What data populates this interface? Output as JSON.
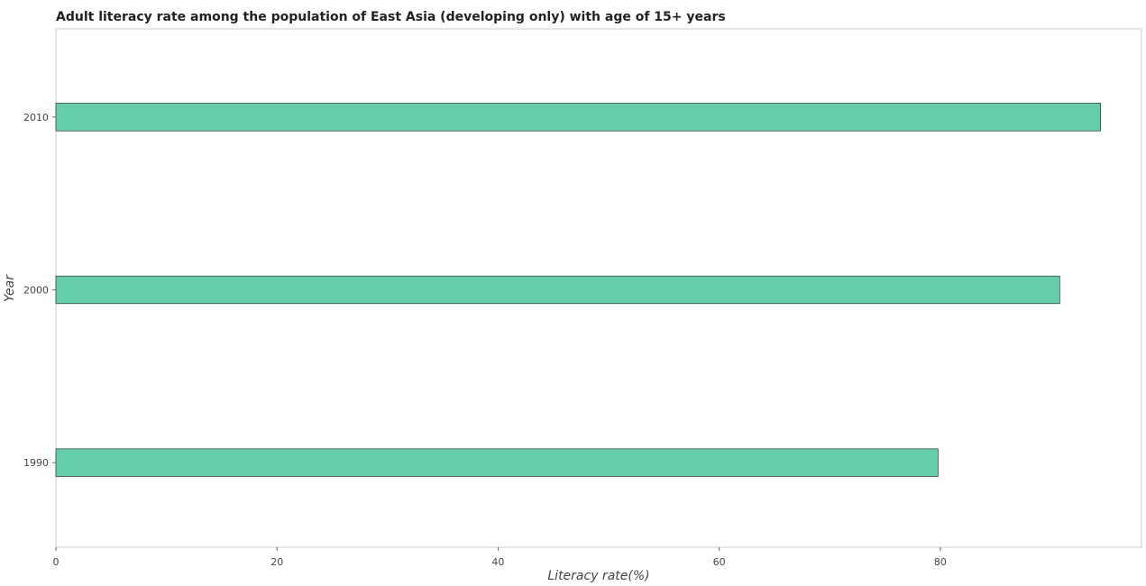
{
  "chart_data": {
    "type": "bar",
    "orientation": "horizontal",
    "title": "Adult literacy rate among the population of East Asia (developing only) with age of 15+ years",
    "xlabel": "Literacy rate(%)",
    "ylabel": "Year",
    "categories": [
      "1990",
      "2000",
      "2010"
    ],
    "values": [
      79.8,
      90.8,
      94.5
    ],
    "xlim": [
      0,
      98.2
    ],
    "xticks": [
      "0",
      "20",
      "40",
      "60",
      "80"
    ],
    "bar_color": "#66cdaa",
    "grid": false
  }
}
